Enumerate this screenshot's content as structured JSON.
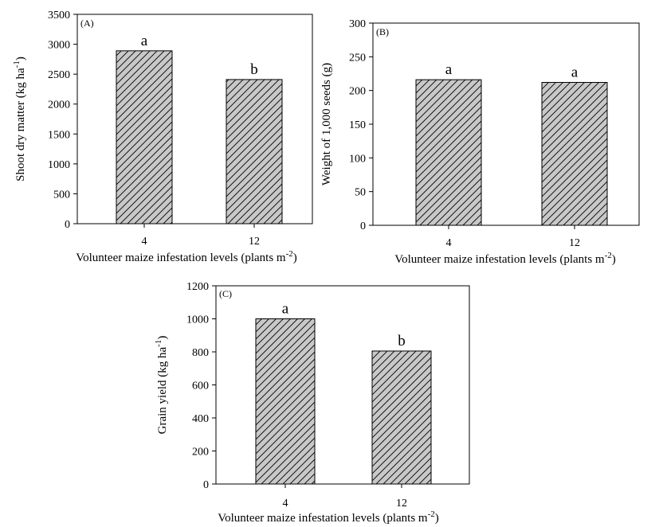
{
  "figure": {
    "hatch_color": "#c8c8c8",
    "line_color": "#000000"
  },
  "chart_data": [
    {
      "type": "bar",
      "panel": "(A)",
      "categories": [
        "4",
        "12"
      ],
      "values": [
        2890,
        2410
      ],
      "significance": [
        "a",
        "b"
      ],
      "ylabel": "Shoot dry matter (kg ha",
      "ylabel_sup": "-1",
      "ylabel_end": ")",
      "xlabel": "Volunteer maize infestation levels (plants m",
      "xlabel_sup": "-2",
      "xlabel_end": ")",
      "ylim": [
        0,
        3500
      ],
      "yticks": [
        0,
        500,
        1000,
        1500,
        2000,
        2500,
        3000,
        3500
      ]
    },
    {
      "type": "bar",
      "panel": "(B)",
      "categories": [
        "4",
        "12"
      ],
      "values": [
        216,
        212
      ],
      "significance": [
        "a",
        "a"
      ],
      "ylabel": "Weight of 1,000 seeds (g)",
      "ylabel_sup": "",
      "ylabel_end": "",
      "xlabel": "Volunteer maize infestation levels (plants m",
      "xlabel_sup": "-2",
      "xlabel_end": ")",
      "ylim": [
        0,
        300
      ],
      "yticks": [
        0,
        50,
        100,
        150,
        200,
        250,
        300
      ]
    },
    {
      "type": "bar",
      "panel": "(C)",
      "categories": [
        "4",
        "12"
      ],
      "values": [
        1000,
        805
      ],
      "significance": [
        "a",
        "b"
      ],
      "ylabel": "Grain yield (kg ha",
      "ylabel_sup": "-1",
      "ylabel_end": ")",
      "xlabel": "Volunteer maize infestation levels (plants m",
      "xlabel_sup": "-2",
      "xlabel_end": ")",
      "ylim": [
        0,
        1200
      ],
      "yticks": [
        0,
        200,
        400,
        600,
        800,
        1000,
        1200
      ]
    }
  ]
}
